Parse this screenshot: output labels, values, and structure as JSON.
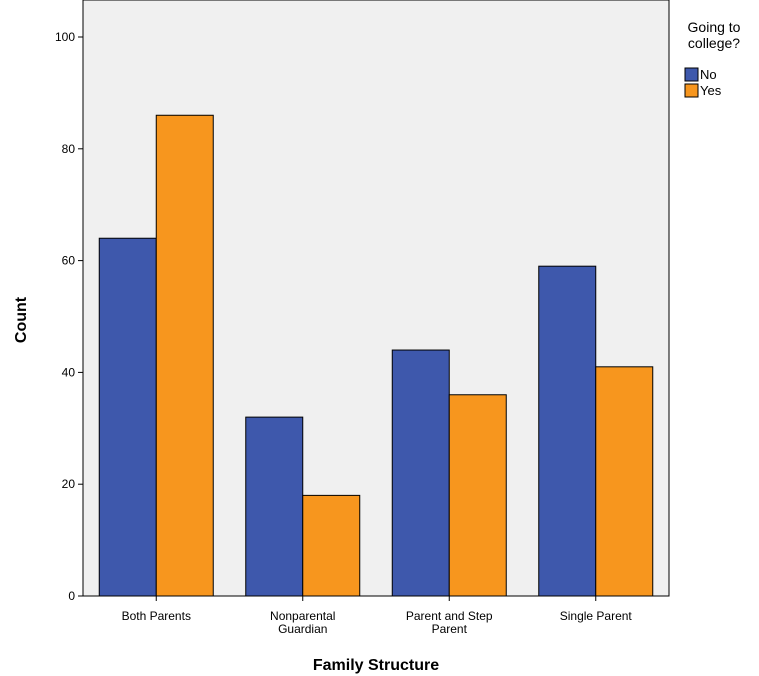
{
  "chart_data": {
    "type": "bar",
    "title": "",
    "xlabel": "Family Structure",
    "ylabel": "Count",
    "ylim": [
      0,
      105
    ],
    "yticks": [
      0,
      20,
      40,
      60,
      80,
      100
    ],
    "categories": [
      [
        "Both Parents"
      ],
      [
        "Nonparental",
        "Guardian"
      ],
      [
        "Parent and Step",
        "Parent"
      ],
      [
        "Single Parent"
      ]
    ],
    "series": [
      {
        "name": "No",
        "color": "#3e58ac",
        "values": [
          64,
          32,
          44,
          59
        ]
      },
      {
        "name": "Yes",
        "color": "#f7961e",
        "values": [
          86,
          18,
          36,
          41
        ]
      }
    ],
    "legend": {
      "title_lines": [
        "Going to",
        "college?"
      ],
      "placement": "top-right, outside plot"
    },
    "grid": false,
    "plot_background": "#f0f0f0"
  }
}
